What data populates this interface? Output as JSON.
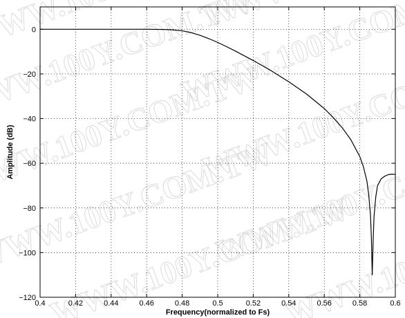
{
  "watermark": "WWW.100Y.COM.TW",
  "chart_data": {
    "type": "line",
    "xlabel": "Frequency(normalized to Fs)",
    "ylabel": "Amplitude (dB)",
    "xlim": [
      0.4,
      0.6
    ],
    "ylim": [
      -120,
      10
    ],
    "xticks": [
      0.4,
      0.42,
      0.44,
      0.46,
      0.48,
      0.5,
      0.52,
      0.54,
      0.56,
      0.58,
      0.6
    ],
    "xtick_labels": [
      "0.4",
      "0.42",
      "0.44",
      "0.46",
      "0.48",
      "0.5",
      "0.52",
      "0.54",
      "0.56",
      "0.58",
      "0.6"
    ],
    "yticks": [
      -120,
      -100,
      -80,
      -60,
      -40,
      -20,
      0
    ],
    "ytick_labels": [
      "−120",
      "−100",
      "−80",
      "−60",
      "−40",
      "−20",
      "0"
    ],
    "grid": true,
    "line_color": "#000000",
    "series": [
      {
        "x": [
          0.4,
          0.42,
          0.44,
          0.46,
          0.47,
          0.475,
          0.48,
          0.485,
          0.49,
          0.495,
          0.5,
          0.505,
          0.51,
          0.52,
          0.53,
          0.54,
          0.55,
          0.56,
          0.565,
          0.57,
          0.575,
          0.58,
          0.582,
          0.584,
          0.585,
          0.586,
          0.5865,
          0.587,
          0.5875,
          0.588,
          0.589,
          0.59,
          0.592,
          0.594,
          0.596,
          0.598,
          0.6
        ],
        "y": [
          0,
          0,
          0,
          0,
          -0.1,
          -0.3,
          -0.7,
          -1.5,
          -2.7,
          -4.2,
          -5.9,
          -7.8,
          -9.8,
          -14.0,
          -18.5,
          -23.5,
          -29.0,
          -35.5,
          -39.5,
          -44.0,
          -49.5,
          -57.0,
          -61.5,
          -68.0,
          -74.0,
          -83.0,
          -93.0,
          -110.0,
          -95.0,
          -84.0,
          -75.0,
          -70.0,
          -67.0,
          -65.8,
          -65.1,
          -64.9,
          -65.0
        ]
      }
    ]
  }
}
